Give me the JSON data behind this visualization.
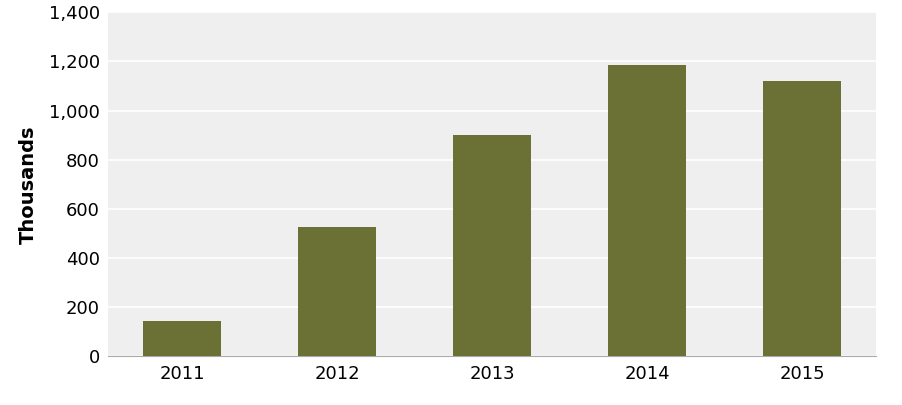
{
  "categories": [
    "2011",
    "2012",
    "2013",
    "2014",
    "2015"
  ],
  "values": [
    143,
    528,
    900,
    1186,
    1120
  ],
  "bar_color": "#6b7134",
  "ylabel": "Thousands",
  "ylim": [
    0,
    1400
  ],
  "yticks": [
    0,
    200,
    400,
    600,
    800,
    1000,
    1200,
    1400
  ],
  "plot_bg_color": "#efefef",
  "fig_bg_color": "#ffffff",
  "ylabel_fontsize": 14,
  "tick_fontsize": 13,
  "bar_width": 0.5,
  "grid_color": "#ffffff",
  "grid_linewidth": 1.2,
  "spine_color": "#aaaaaa"
}
